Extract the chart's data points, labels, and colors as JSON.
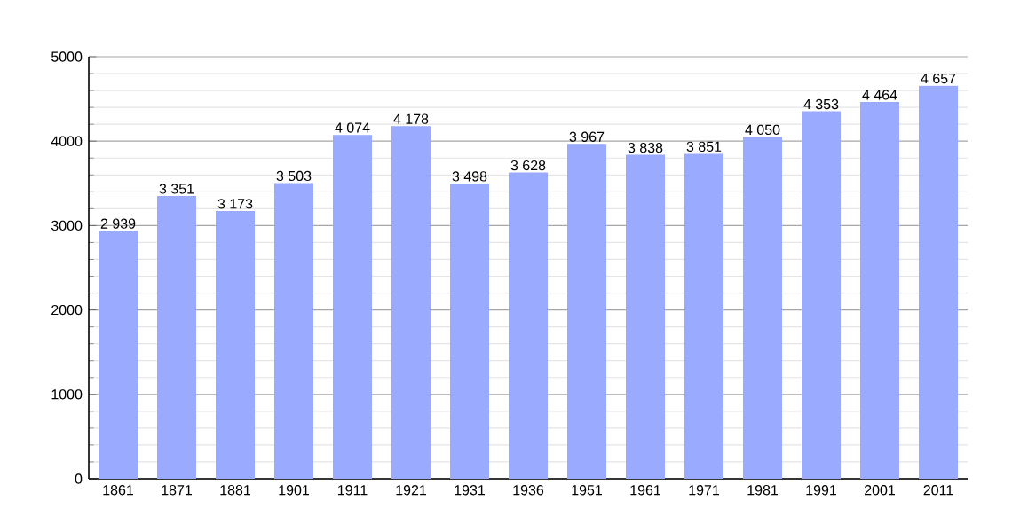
{
  "chart_data": {
    "type": "bar",
    "categories": [
      "1861",
      "1871",
      "1881",
      "1901",
      "1911",
      "1921",
      "1931",
      "1936",
      "1951",
      "1961",
      "1971",
      "1981",
      "1991",
      "2001",
      "2011"
    ],
    "values": [
      2939,
      3351,
      3173,
      3503,
      4074,
      4178,
      3498,
      3628,
      3967,
      3838,
      3851,
      4050,
      4353,
      4464,
      4657
    ],
    "value_labels": [
      "2 939",
      "3 351",
      "3 173",
      "3 503",
      "4 074",
      "4 178",
      "3 498",
      "3 628",
      "3 967",
      "3 838",
      "3 851",
      "4 050",
      "4 353",
      "4 464",
      "4 657"
    ],
    "color": "#99aaff",
    "ylim": [
      0,
      5000
    ],
    "yticks": [
      0,
      1000,
      2000,
      3000,
      4000,
      5000
    ],
    "grid": "y"
  }
}
